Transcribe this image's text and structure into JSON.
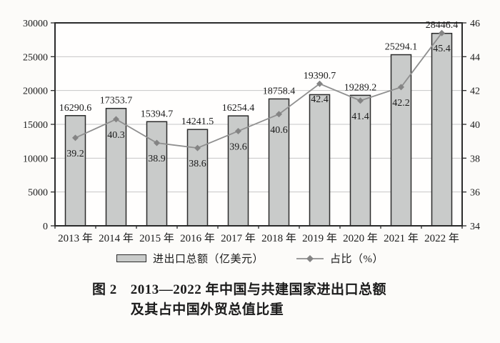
{
  "page": {
    "background": "#fcfbf9"
  },
  "chart_data": {
    "type": "bar",
    "subtype": "combo-bar-line-dual-axis",
    "title": "图 2 2013—2022 年中国与共建国家进出口总额及其占中国外贸总值比重",
    "categories": [
      "2013 年",
      "2014 年",
      "2015 年",
      "2016 年",
      "2017 年",
      "2018 年",
      "2019 年",
      "2020 年",
      "2021 年",
      "2022 年"
    ],
    "series": [
      {
        "name": "进出口总额（亿美元）",
        "kind": "bar",
        "axis": "left",
        "values": [
          16290.6,
          17353.7,
          15394.7,
          14241.5,
          16254.4,
          18758.4,
          19390.7,
          19289.2,
          25294.1,
          28446.4
        ]
      },
      {
        "name": "占比（%）",
        "kind": "line",
        "axis": "right",
        "marker": "diamond",
        "values": [
          39.2,
          40.3,
          38.9,
          38.6,
          39.6,
          40.6,
          42.4,
          41.4,
          42.2,
          45.4
        ]
      }
    ],
    "left_axis": {
      "min": 0,
      "max": 30000,
      "step": 5000,
      "tick_labels": [
        "0",
        "5000",
        "10000",
        "15000",
        "20000",
        "25000",
        "30000"
      ]
    },
    "right_axis": {
      "min": 34,
      "max": 46,
      "step": 2,
      "tick_labels": [
        "34",
        "36",
        "38",
        "40",
        "42",
        "44",
        "46"
      ]
    },
    "grid": true,
    "legend_position": "bottom"
  },
  "legend": {
    "items": [
      {
        "label": "进出口总额（亿美元）",
        "swatch": "bar"
      },
      {
        "label": "占比（%）",
        "swatch": "line-diamond"
      }
    ]
  },
  "caption": {
    "label": "图 2",
    "line1": "2013—2022 年中国与共建国家进出口总额",
    "line2": "及其占中国外贸总值比重"
  },
  "colors": {
    "bar_fill": "#c9cbca",
    "bar_border": "#2b2b2b",
    "line": "#8f8f8f",
    "marker": "#848484",
    "grid": "#c6c6c6",
    "frame": "#2b2b2b",
    "text": "#1b1b1b",
    "plot_bg": "#fffefd"
  }
}
